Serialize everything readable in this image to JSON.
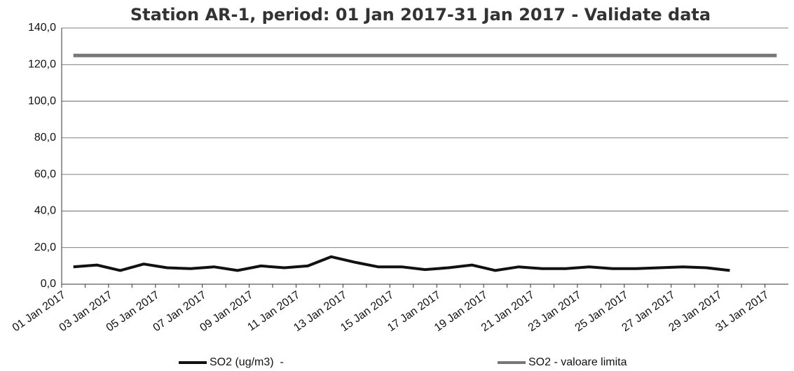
{
  "chart_data": {
    "type": "line",
    "title": "Station AR-1, period: 01 Jan 2017-31 Jan 2017 - Validate data",
    "categories": [
      "01 Jan 2017",
      null,
      "03 Jan 2017",
      null,
      "05 Jan 2017",
      null,
      "07 Jan 2017",
      null,
      "09 Jan 2017",
      null,
      "11 Jan 2017",
      null,
      "13 Jan 2017",
      null,
      "15 Jan 2017",
      null,
      "17 Jan 2017",
      null,
      "19 Jan 2017",
      null,
      "21 Jan 2017",
      null,
      "23 Jan 2017",
      null,
      "25 Jan 2017",
      null,
      "27 Jan 2017",
      null,
      "29 Jan 2017",
      null,
      "31 Jan 2017"
    ],
    "series": [
      {
        "name": "SO2 (ug/m3)  -",
        "color": "#111111",
        "values": [
          9.5,
          10.5,
          7.5,
          11,
          9,
          8.5,
          9.5,
          7.5,
          10,
          9,
          10,
          15,
          12,
          9.5,
          9.5,
          8,
          9,
          10.5,
          7.5,
          9.5,
          8.5,
          8.5,
          9.5,
          8.5,
          8.5,
          9,
          9.5,
          9,
          7.5,
          null,
          null
        ]
      },
      {
        "name": "SO2 - valoare limita",
        "color": "#777777",
        "values": [
          125,
          125,
          125,
          125,
          125,
          125,
          125,
          125,
          125,
          125,
          125,
          125,
          125,
          125,
          125,
          125,
          125,
          125,
          125,
          125,
          125,
          125,
          125,
          125,
          125,
          125,
          125,
          125,
          125,
          125,
          125
        ]
      }
    ],
    "ylim": [
      0,
      140
    ],
    "yticks": [
      {
        "value": 0,
        "label": "0,0"
      },
      {
        "value": 20,
        "label": "20,0"
      },
      {
        "value": 40,
        "label": "40,0"
      },
      {
        "value": 60,
        "label": "60,0"
      },
      {
        "value": 80,
        "label": "80,0"
      },
      {
        "value": 100,
        "label": "100,0"
      },
      {
        "value": 120,
        "label": "120,0"
      },
      {
        "value": 140,
        "label": "140,0"
      }
    ],
    "grid": true
  }
}
